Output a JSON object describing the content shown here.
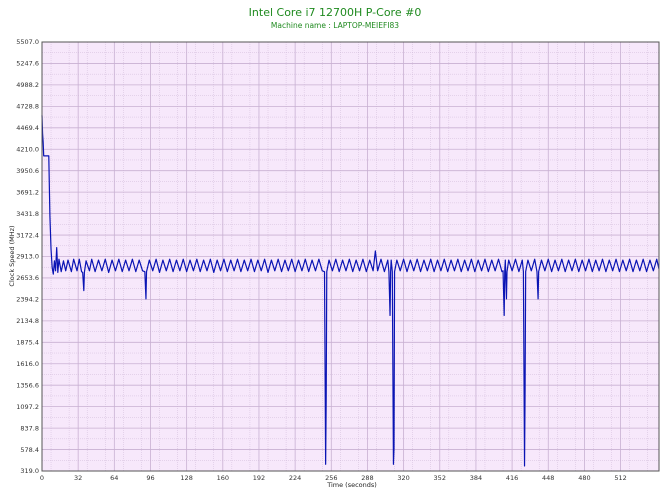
{
  "chart_data": {
    "type": "line",
    "title": "Intel Core i7 12700H P-Core #0",
    "subtitle": "Machine name : LAPTOP-MEIEFI83",
    "xlabel": "Time (seconds)",
    "ylabel": "Clock Speed (MHz)",
    "xlim": [
      0,
      546
    ],
    "ylim": [
      319.0,
      5507.0
    ],
    "x_ticks": [
      "0",
      "32",
      "64",
      "96",
      "128",
      "160",
      "192",
      "224",
      "256",
      "288",
      "320",
      "352",
      "384",
      "416",
      "448",
      "480",
      "512"
    ],
    "y_ticks": [
      "319.0",
      "578.4",
      "837.8",
      "1097.2",
      "1356.6",
      "1616.0",
      "1875.4",
      "2134.8",
      "2394.2",
      "2653.6",
      "2913.0",
      "3172.4",
      "3431.8",
      "3691.2",
      "3950.6",
      "4210.0",
      "4469.4",
      "4728.8",
      "4988.2",
      "5247.6",
      "5507.0"
    ],
    "grid": true,
    "colors": {
      "background": "#f7e8fb",
      "grid": "#c8b0d2",
      "line": "#0a14b4",
      "frame": "#555555",
      "title": "#1f8a1f"
    },
    "series": [
      {
        "values": [
          [
            0.0,
            4620
          ],
          [
            0.5,
            4400
          ],
          [
            1.0,
            4300
          ],
          [
            1.5,
            4130
          ],
          [
            6.0,
            4130
          ],
          [
            7.0,
            3400
          ],
          [
            8.0,
            3000
          ],
          [
            9.0,
            2780
          ],
          [
            10.0,
            2700
          ],
          [
            11.0,
            2860
          ],
          [
            12.0,
            2740
          ],
          [
            13.0,
            3020
          ],
          [
            14.0,
            2720
          ],
          [
            15.0,
            2880
          ],
          [
            17.0,
            2730
          ],
          [
            19.0,
            2860
          ],
          [
            21.0,
            2740
          ],
          [
            23.0,
            2870
          ],
          [
            26.0,
            2730
          ],
          [
            28.0,
            2880
          ],
          [
            31.0,
            2740
          ],
          [
            33.0,
            2880
          ],
          [
            35.0,
            2730
          ],
          [
            36.0,
            2720
          ],
          [
            37.0,
            2500
          ],
          [
            37.5,
            2720
          ],
          [
            39.0,
            2860
          ],
          [
            42.0,
            2740
          ],
          [
            44.0,
            2880
          ],
          [
            47.0,
            2730
          ],
          [
            50.0,
            2870
          ],
          [
            53.0,
            2740
          ],
          [
            56.0,
            2880
          ],
          [
            59.0,
            2720
          ],
          [
            62.0,
            2870
          ],
          [
            65.0,
            2740
          ],
          [
            68.0,
            2880
          ],
          [
            71.0,
            2730
          ],
          [
            74.0,
            2870
          ],
          [
            77.0,
            2740
          ],
          [
            80.0,
            2880
          ],
          [
            83.0,
            2730
          ],
          [
            86.0,
            2870
          ],
          [
            89.0,
            2740
          ],
          [
            91.0,
            2730
          ],
          [
            92.0,
            2400
          ],
          [
            92.5,
            2730
          ],
          [
            95.0,
            2870
          ],
          [
            98.0,
            2740
          ],
          [
            101.0,
            2880
          ],
          [
            104.0,
            2720
          ],
          [
            107.0,
            2870
          ],
          [
            110.0,
            2740
          ],
          [
            113.0,
            2880
          ],
          [
            116.0,
            2730
          ],
          [
            119.0,
            2870
          ],
          [
            122.0,
            2740
          ],
          [
            125.0,
            2880
          ],
          [
            128.0,
            2730
          ],
          [
            131.0,
            2870
          ],
          [
            134.0,
            2740
          ],
          [
            137.0,
            2880
          ],
          [
            140.0,
            2730
          ],
          [
            143.0,
            2870
          ],
          [
            146.0,
            2740
          ],
          [
            149.0,
            2880
          ],
          [
            152.0,
            2720
          ],
          [
            155.0,
            2870
          ],
          [
            158.0,
            2740
          ],
          [
            161.0,
            2880
          ],
          [
            164.0,
            2730
          ],
          [
            167.0,
            2870
          ],
          [
            170.0,
            2740
          ],
          [
            173.0,
            2880
          ],
          [
            176.0,
            2730
          ],
          [
            179.0,
            2870
          ],
          [
            182.0,
            2740
          ],
          [
            185.0,
            2880
          ],
          [
            188.0,
            2730
          ],
          [
            191.0,
            2870
          ],
          [
            194.0,
            2740
          ],
          [
            197.0,
            2880
          ],
          [
            200.0,
            2720
          ],
          [
            203.0,
            2870
          ],
          [
            206.0,
            2740
          ],
          [
            209.0,
            2880
          ],
          [
            212.0,
            2730
          ],
          [
            215.0,
            2870
          ],
          [
            218.0,
            2740
          ],
          [
            221.0,
            2880
          ],
          [
            224.0,
            2730
          ],
          [
            227.0,
            2870
          ],
          [
            230.0,
            2740
          ],
          [
            233.0,
            2880
          ],
          [
            236.0,
            2730
          ],
          [
            239.0,
            2870
          ],
          [
            242.0,
            2740
          ],
          [
            245.0,
            2880
          ],
          [
            248.0,
            2740
          ],
          [
            250.0,
            2730
          ],
          [
            251.0,
            400
          ],
          [
            251.5,
            1200
          ],
          [
            252.0,
            2730
          ],
          [
            254.0,
            2870
          ],
          [
            257.0,
            2740
          ],
          [
            260.0,
            2880
          ],
          [
            263.0,
            2730
          ],
          [
            266.0,
            2870
          ],
          [
            269.0,
            2740
          ],
          [
            272.0,
            2880
          ],
          [
            275.0,
            2730
          ],
          [
            278.0,
            2870
          ],
          [
            281.0,
            2740
          ],
          [
            284.0,
            2880
          ],
          [
            287.0,
            2730
          ],
          [
            290.0,
            2870
          ],
          [
            293.0,
            2740
          ],
          [
            295.0,
            2980
          ],
          [
            297.0,
            2740
          ],
          [
            300.0,
            2880
          ],
          [
            303.0,
            2730
          ],
          [
            306.0,
            2870
          ],
          [
            307.0,
            2730
          ],
          [
            308.0,
            2200
          ],
          [
            308.5,
            2730
          ],
          [
            309.0,
            2870
          ],
          [
            310.0,
            2730
          ],
          [
            311.0,
            400
          ],
          [
            311.5,
            600
          ],
          [
            312.0,
            2730
          ],
          [
            314.0,
            2870
          ],
          [
            317.0,
            2740
          ],
          [
            320.0,
            2880
          ],
          [
            323.0,
            2730
          ],
          [
            326.0,
            2870
          ],
          [
            329.0,
            2740
          ],
          [
            332.0,
            2880
          ],
          [
            335.0,
            2730
          ],
          [
            338.0,
            2870
          ],
          [
            341.0,
            2740
          ],
          [
            344.0,
            2880
          ],
          [
            347.0,
            2730
          ],
          [
            350.0,
            2870
          ],
          [
            353.0,
            2740
          ],
          [
            356.0,
            2880
          ],
          [
            359.0,
            2730
          ],
          [
            362.0,
            2870
          ],
          [
            365.0,
            2740
          ],
          [
            368.0,
            2880
          ],
          [
            371.0,
            2730
          ],
          [
            374.0,
            2870
          ],
          [
            377.0,
            2740
          ],
          [
            380.0,
            2880
          ],
          [
            383.0,
            2730
          ],
          [
            386.0,
            2870
          ],
          [
            389.0,
            2740
          ],
          [
            392.0,
            2880
          ],
          [
            395.0,
            2730
          ],
          [
            398.0,
            2870
          ],
          [
            401.0,
            2740
          ],
          [
            404.0,
            2880
          ],
          [
            407.0,
            2730
          ],
          [
            408.0,
            2740
          ],
          [
            409.0,
            2200
          ],
          [
            409.5,
            2740
          ],
          [
            410.0,
            2870
          ],
          [
            411.0,
            2400
          ],
          [
            411.5,
            2730
          ],
          [
            413.0,
            2870
          ],
          [
            416.0,
            2740
          ],
          [
            419.0,
            2880
          ],
          [
            422.0,
            2730
          ],
          [
            425.0,
            2870
          ],
          [
            426.0,
            2730
          ],
          [
            427.0,
            380
          ],
          [
            427.5,
            1300
          ],
          [
            428.0,
            2730
          ],
          [
            430.0,
            2870
          ],
          [
            433.0,
            2740
          ],
          [
            436.0,
            2880
          ],
          [
            438.0,
            2730
          ],
          [
            439.0,
            2400
          ],
          [
            439.5,
            2730
          ],
          [
            442.0,
            2870
          ],
          [
            445.0,
            2740
          ],
          [
            448.0,
            2880
          ],
          [
            451.0,
            2730
          ],
          [
            454.0,
            2870
          ],
          [
            457.0,
            2740
          ],
          [
            460.0,
            2880
          ],
          [
            463.0,
            2730
          ],
          [
            466.0,
            2870
          ],
          [
            469.0,
            2740
          ],
          [
            472.0,
            2880
          ],
          [
            475.0,
            2730
          ],
          [
            478.0,
            2870
          ],
          [
            481.0,
            2740
          ],
          [
            484.0,
            2880
          ],
          [
            487.0,
            2730
          ],
          [
            490.0,
            2870
          ],
          [
            493.0,
            2740
          ],
          [
            496.0,
            2880
          ],
          [
            499.0,
            2730
          ],
          [
            502.0,
            2870
          ],
          [
            505.0,
            2740
          ],
          [
            508.0,
            2880
          ],
          [
            511.0,
            2730
          ],
          [
            514.0,
            2870
          ],
          [
            517.0,
            2740
          ],
          [
            520.0,
            2880
          ],
          [
            523.0,
            2730
          ],
          [
            526.0,
            2870
          ],
          [
            529.0,
            2740
          ],
          [
            532.0,
            2880
          ],
          [
            535.0,
            2730
          ],
          [
            538.0,
            2870
          ],
          [
            541.0,
            2740
          ],
          [
            544.0,
            2880
          ],
          [
            546.0,
            2760
          ]
        ]
      }
    ]
  }
}
